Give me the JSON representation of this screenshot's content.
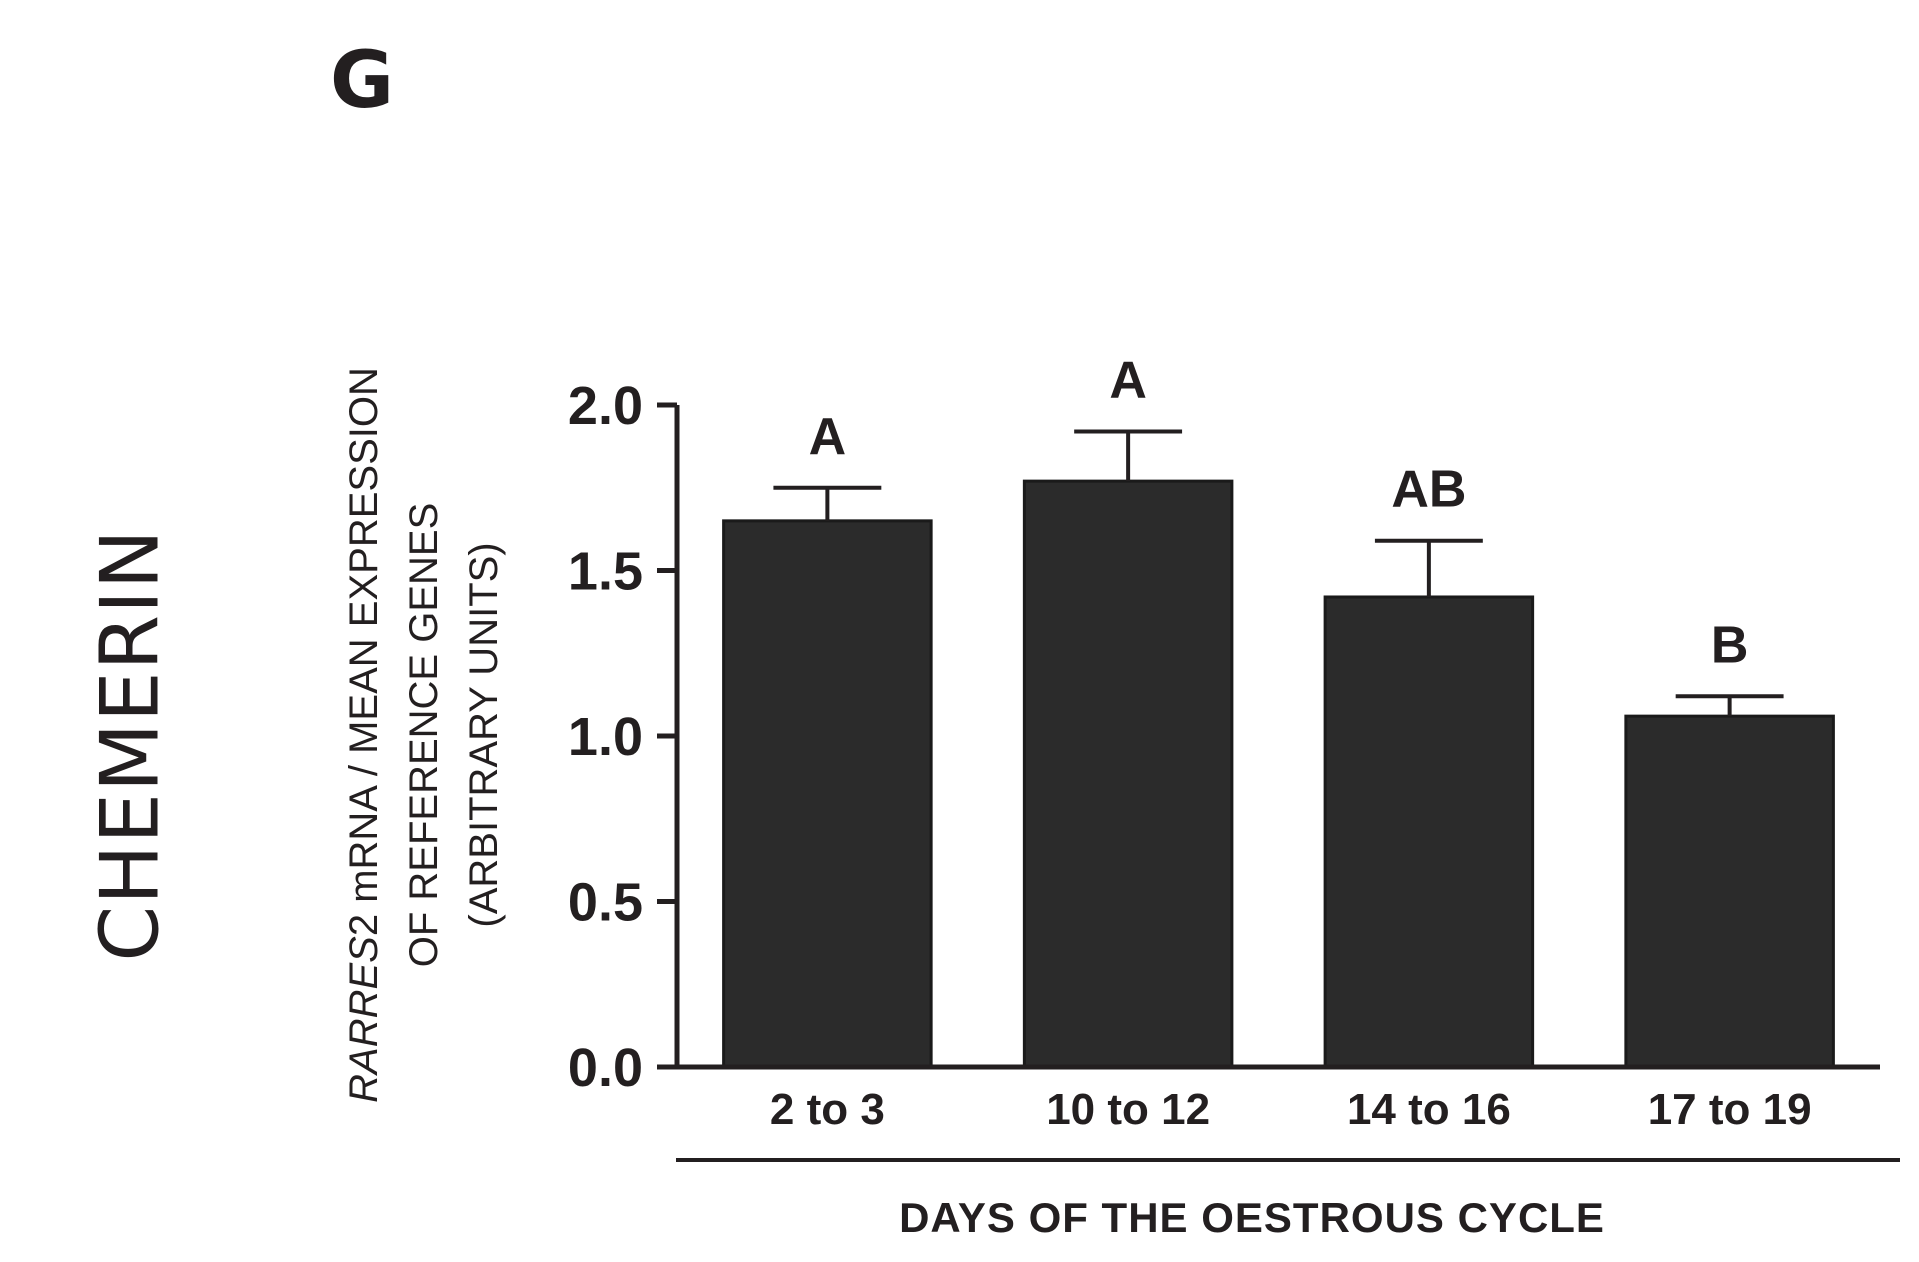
{
  "panel_label": "G",
  "side_label": "CHEMERIN",
  "chart_data": {
    "type": "bar",
    "title": "",
    "categories": [
      "2 to 3",
      "10 to 12",
      "14 to 16",
      "17 to 19"
    ],
    "values": [
      1.65,
      1.77,
      1.42,
      1.06
    ],
    "errors": [
      0.1,
      0.15,
      0.17,
      0.06
    ],
    "significance": [
      "A",
      "A",
      "AB",
      "B"
    ],
    "ylim": [
      0,
      2.0
    ],
    "yticks": [
      "0.0",
      "0.5",
      "1.0",
      "1.5",
      "2.0"
    ],
    "ylabel_line1_italic": "RARRES",
    "ylabel_line1_rest": "2 mRNA / MEAN EXPRESSION",
    "ylabel_line2": "OF REFERENCE GENES",
    "ylabel_line3": "(ARBITRARY UNITS)",
    "xlabel": "DAYS OF THE OESTROUS CYCLE",
    "bar_color": "#2b2b2b",
    "axis_color": "#231f20"
  }
}
